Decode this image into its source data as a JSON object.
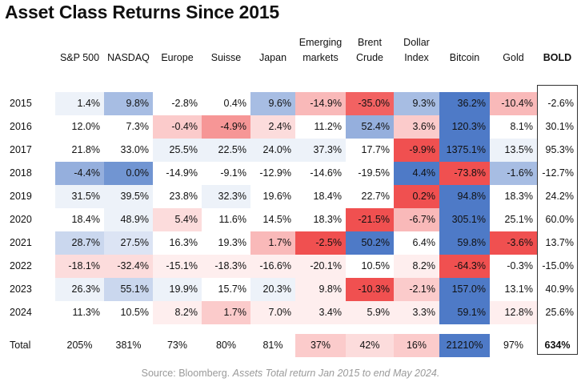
{
  "header": {
    "title": "Asset Class Returns Since 2015"
  },
  "footer": {
    "source_prefix": "Source: Bloomberg.",
    "source_note": "Assets Total return Jan 2015 to end May 2024."
  },
  "chart_data": {
    "type": "table",
    "title": "Asset Class Returns Since 2015",
    "columns": [
      {
        "label": "S&P 500",
        "bold": false
      },
      {
        "label": "NASDAQ",
        "bold": false
      },
      {
        "label": "Europe",
        "bold": false
      },
      {
        "label": "Suisse",
        "bold": false
      },
      {
        "label": "Japan",
        "bold": false
      },
      {
        "label": "Emerging\nmarkets",
        "bold": false
      },
      {
        "label": "Brent\nCrude",
        "bold": false
      },
      {
        "label": "Dollar\nIndex",
        "bold": false
      },
      {
        "label": "Bitcoin",
        "bold": false
      },
      {
        "label": "Gold",
        "bold": false
      },
      {
        "label": "BOLD",
        "bold": true
      }
    ],
    "rows": [
      {
        "year": "2015",
        "values": [
          "1.4%",
          "9.8%",
          "-2.8%",
          "0.4%",
          "9.6%",
          "-14.9%",
          "-35.0%",
          "9.3%",
          "36.2%",
          "-10.4%",
          "-2.6%"
        ]
      },
      {
        "year": "2016",
        "values": [
          "12.0%",
          "7.3%",
          "-0.4%",
          "-4.9%",
          "2.4%",
          "11.2%",
          "52.4%",
          "3.6%",
          "120.3%",
          "8.1%",
          "30.1%"
        ]
      },
      {
        "year": "2017",
        "values": [
          "21.8%",
          "33.0%",
          "25.5%",
          "22.5%",
          "24.0%",
          "37.3%",
          "17.7%",
          "-9.9%",
          "1375.1%",
          "13.5%",
          "95.3%"
        ]
      },
      {
        "year": "2018",
        "values": [
          "-4.4%",
          "0.0%",
          "-14.9%",
          "-9.1%",
          "-12.9%",
          "-14.6%",
          "-19.5%",
          "4.4%",
          "-73.8%",
          "-1.6%",
          "-12.7%"
        ]
      },
      {
        "year": "2019",
        "values": [
          "31.5%",
          "39.5%",
          "23.8%",
          "32.3%",
          "19.6%",
          "18.4%",
          "22.7%",
          "0.2%",
          "94.8%",
          "18.3%",
          "24.2%"
        ]
      },
      {
        "year": "2020",
        "values": [
          "18.4%",
          "48.9%",
          "5.4%",
          "11.6%",
          "14.5%",
          "18.3%",
          "-21.5%",
          "-6.7%",
          "305.1%",
          "25.1%",
          "60.0%"
        ]
      },
      {
        "year": "2021",
        "values": [
          "28.7%",
          "27.5%",
          "16.3%",
          "19.3%",
          "1.7%",
          "-2.5%",
          "50.2%",
          "6.4%",
          "59.8%",
          "-3.6%",
          "13.7%"
        ]
      },
      {
        "year": "2022",
        "values": [
          "-18.1%",
          "-32.4%",
          "-15.1%",
          "-18.3%",
          "-16.6%",
          "-20.1%",
          "10.5%",
          "8.2%",
          "-64.3%",
          "-0.3%",
          "-15.0%"
        ]
      },
      {
        "year": "2023",
        "values": [
          "26.3%",
          "55.1%",
          "19.9%",
          "15.7%",
          "20.3%",
          "9.8%",
          "-10.3%",
          "-2.1%",
          "157.0%",
          "13.1%",
          "40.9%"
        ]
      },
      {
        "year": "2024",
        "values": [
          "11.3%",
          "10.5%",
          "8.2%",
          "1.7%",
          "7.0%",
          "3.4%",
          "5.9%",
          "3.3%",
          "59.1%",
          "12.8%",
          "25.6%"
        ]
      }
    ],
    "total": {
      "label": "Total",
      "values": [
        "205%",
        "381%",
        "73%",
        "80%",
        "81%",
        "37%",
        "42%",
        "16%",
        "21210%",
        "97%",
        "634%"
      ]
    },
    "colors": {
      "year_cells": [
        [
          1,
          5,
          0,
          0,
          5,
          -4,
          -9,
          5,
          10,
          -4,
          0
        ],
        [
          0,
          0,
          -3,
          -6,
          -2,
          0,
          6,
          -3,
          10,
          0,
          0
        ],
        [
          0,
          0,
          1,
          1,
          1,
          1,
          0,
          -10,
          10,
          1,
          0
        ],
        [
          6,
          8,
          0,
          0,
          0,
          0,
          0,
          10,
          -10,
          5,
          0
        ],
        [
          1,
          1,
          0,
          1,
          0,
          0,
          0,
          -10,
          10,
          0,
          0
        ],
        [
          0,
          1,
          -2,
          0,
          0,
          0,
          -10,
          -4,
          10,
          0,
          0
        ],
        [
          3,
          2,
          0,
          0,
          -4,
          -10,
          10,
          0,
          10,
          -10,
          0
        ],
        [
          -2,
          -2,
          -1,
          -1,
          -1,
          -1,
          0,
          -1,
          -10,
          0,
          0
        ],
        [
          1,
          3,
          1,
          0,
          1,
          -1,
          -10,
          -3,
          10,
          0,
          0
        ],
        [
          0,
          0,
          -1,
          -3,
          -1,
          -1,
          -1,
          -1,
          10,
          -1,
          0
        ]
      ],
      "total_cells": [
        0,
        0,
        0,
        0,
        0,
        -3,
        -2,
        -3,
        10,
        0,
        0
      ],
      "strong_positive": "#4e7ac7",
      "strong_negative": "#f05050"
    }
  }
}
